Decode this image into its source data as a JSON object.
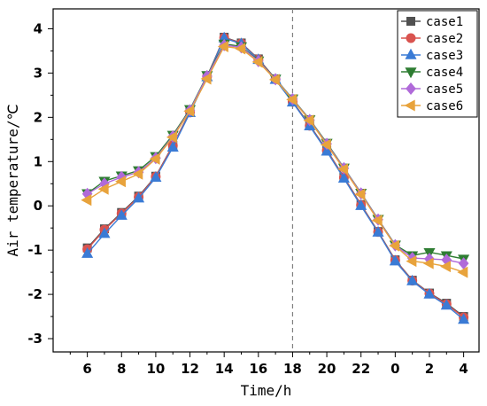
{
  "chart_data": {
    "type": "line",
    "xlabel": "Time/h",
    "ylabel": "Air temperature/℃",
    "x_tick_labels": [
      "6",
      "8",
      "10",
      "12",
      "14",
      "16",
      "18",
      "20",
      "22",
      "0",
      "2",
      "4"
    ],
    "y_tick_labels": [
      "4",
      "3",
      "2",
      "1",
      "0",
      "-1",
      "-2",
      "-3"
    ],
    "ylim": [
      -3.3,
      4.45
    ],
    "x_hours_range": [
      4,
      28.9
    ],
    "vline_hour": 18,
    "grid": false,
    "legend_position": "top-right",
    "x": [
      6,
      7,
      8,
      9,
      10,
      11,
      12,
      13,
      14,
      15,
      16,
      17,
      18,
      19,
      20,
      21,
      22,
      23,
      24,
      25,
      26,
      27,
      28
    ],
    "series": [
      {
        "name": "case1",
        "color": "#505050",
        "marker": "square",
        "values": [
          -0.95,
          -0.52,
          -0.15,
          0.22,
          0.67,
          1.37,
          2.12,
          2.92,
          3.81,
          3.68,
          3.32,
          2.87,
          2.36,
          1.82,
          1.26,
          0.65,
          0.03,
          -0.58,
          -1.22,
          -1.68,
          -1.97,
          -2.2,
          -2.5
        ]
      },
      {
        "name": "case2",
        "color": "#d9534f",
        "marker": "circle",
        "values": [
          -0.98,
          -0.54,
          -0.17,
          0.2,
          0.66,
          1.36,
          2.11,
          2.92,
          3.8,
          3.67,
          3.31,
          2.86,
          2.35,
          1.81,
          1.25,
          0.64,
          0.02,
          -0.59,
          -1.23,
          -1.69,
          -1.98,
          -2.22,
          -2.52
        ]
      },
      {
        "name": "case3",
        "color": "#3a7bd5",
        "marker": "triangle-up",
        "values": [
          -1.08,
          -0.63,
          -0.22,
          0.17,
          0.64,
          1.32,
          2.1,
          2.91,
          3.79,
          3.66,
          3.3,
          2.85,
          2.34,
          1.8,
          1.23,
          0.62,
          0.0,
          -0.6,
          -1.25,
          -1.7,
          -2.0,
          -2.25,
          -2.57
        ]
      },
      {
        "name": "case4",
        "color": "#2e7d32",
        "marker": "triangle-down",
        "values": [
          0.28,
          0.56,
          0.68,
          0.8,
          1.12,
          1.6,
          2.18,
          2.95,
          3.66,
          3.6,
          3.28,
          2.87,
          2.42,
          1.95,
          1.42,
          0.86,
          0.29,
          -0.3,
          -0.88,
          -1.12,
          -1.05,
          -1.12,
          -1.2
        ]
      },
      {
        "name": "case5",
        "color": "#b06ad9",
        "marker": "diamond",
        "values": [
          0.27,
          0.5,
          0.65,
          0.76,
          1.08,
          1.57,
          2.16,
          2.93,
          3.63,
          3.58,
          3.27,
          2.86,
          2.41,
          1.94,
          1.4,
          0.85,
          0.28,
          -0.31,
          -0.89,
          -1.18,
          -1.2,
          -1.22,
          -1.3
        ]
      },
      {
        "name": "case6",
        "color": "#e8a33c",
        "marker": "triangle-left",
        "values": [
          0.13,
          0.38,
          0.55,
          0.72,
          1.06,
          1.55,
          2.14,
          2.87,
          3.6,
          3.55,
          3.25,
          2.85,
          2.4,
          1.93,
          1.38,
          0.83,
          0.26,
          -0.33,
          -0.9,
          -1.25,
          -1.3,
          -1.37,
          -1.5
        ]
      }
    ]
  }
}
